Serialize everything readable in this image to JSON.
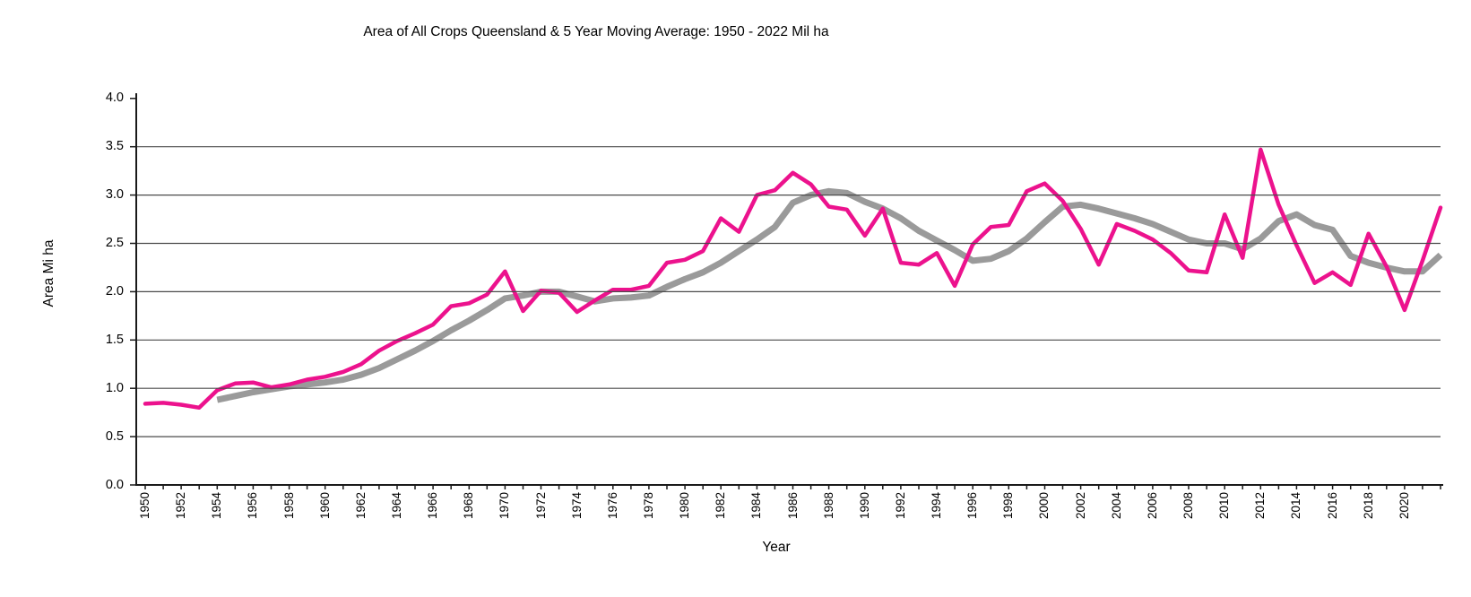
{
  "chart_data": {
    "type": "line",
    "title": "Area of All Crops Queensland & 5 Year Moving Average: 1950 - 2022 Mil ha",
    "xlabel": "Year",
    "ylabel": "Area Mi ha",
    "x_start": 1950,
    "x_end": 2022,
    "ylim": [
      0.0,
      4.0
    ],
    "grid": "horizontal-only",
    "legend_position": "none",
    "axis_color": "#1a1a1a",
    "gridline_color": "#4a4a4a",
    "y_tick_labels": [
      "0.0",
      "0.5",
      "1.0",
      "1.5",
      "2.0",
      "2.5",
      "3.0",
      "3.5",
      "4.0"
    ],
    "x_tick_labels": [
      "1950",
      "1952",
      "1954",
      "1956",
      "1958",
      "1960",
      "1962",
      "1964",
      "1966",
      "1968",
      "1970",
      "1972",
      "1974",
      "1976",
      "1978",
      "1980",
      "1982",
      "1984",
      "1986",
      "1988",
      "1990",
      "1992",
      "1994",
      "1996",
      "1998",
      "2000",
      "2002",
      "2004",
      "2006",
      "2008",
      "2010",
      "2012",
      "2014",
      "2016",
      "2018",
      "2020"
    ],
    "series": [
      {
        "id": "annual-area",
        "name": "Area of All Crops Queensland",
        "color": "#ec128d",
        "width": 4.5,
        "cap": "round",
        "start_year": 1950,
        "values": [
          0.84,
          0.85,
          0.83,
          0.8,
          0.98,
          1.05,
          1.06,
          1.01,
          1.04,
          1.09,
          1.12,
          1.17,
          1.25,
          1.39,
          1.49,
          1.57,
          1.66,
          1.85,
          1.88,
          1.97,
          2.21,
          1.8,
          2.01,
          1.99,
          1.79,
          1.91,
          2.02,
          2.02,
          2.06,
          2.3,
          2.33,
          2.42,
          2.76,
          2.62,
          3.0,
          3.05,
          3.23,
          3.11,
          2.88,
          2.85,
          2.58,
          2.86,
          2.3,
          2.28,
          2.4,
          2.06,
          2.49,
          2.67,
          2.69,
          3.04,
          3.12,
          2.94,
          2.65,
          2.28,
          2.7,
          2.63,
          2.54,
          2.4,
          2.22,
          2.2,
          2.8,
          2.35,
          3.47,
          2.9,
          2.48,
          2.09,
          2.2,
          2.07,
          2.6,
          2.26,
          1.81,
          2.32,
          2.87
        ]
      },
      {
        "id": "moving-average",
        "name": "5 Year Moving Average",
        "color": "#9a9a9a",
        "width": 7,
        "cap": "butt",
        "start_year": 1954,
        "values": [
          0.88,
          0.92,
          0.96,
          0.99,
          1.02,
          1.04,
          1.06,
          1.09,
          1.14,
          1.21,
          1.3,
          1.39,
          1.49,
          1.6,
          1.7,
          1.81,
          1.93,
          1.96,
          2.0,
          2.0,
          1.95,
          1.9,
          1.93,
          1.94,
          1.96,
          2.05,
          2.13,
          2.2,
          2.3,
          2.42,
          2.54,
          2.67,
          2.92,
          3.0,
          3.04,
          3.02,
          2.93,
          2.86,
          2.76,
          2.63,
          2.53,
          2.43,
          2.32,
          2.34,
          2.42,
          2.55,
          2.72,
          2.88,
          2.9,
          2.86,
          2.81,
          2.76,
          2.7,
          2.62,
          2.54,
          2.5,
          2.5,
          2.44,
          2.55,
          2.73,
          2.8,
          2.69,
          2.64,
          2.37,
          2.3,
          2.25,
          2.21,
          2.21,
          2.38
        ]
      }
    ]
  }
}
